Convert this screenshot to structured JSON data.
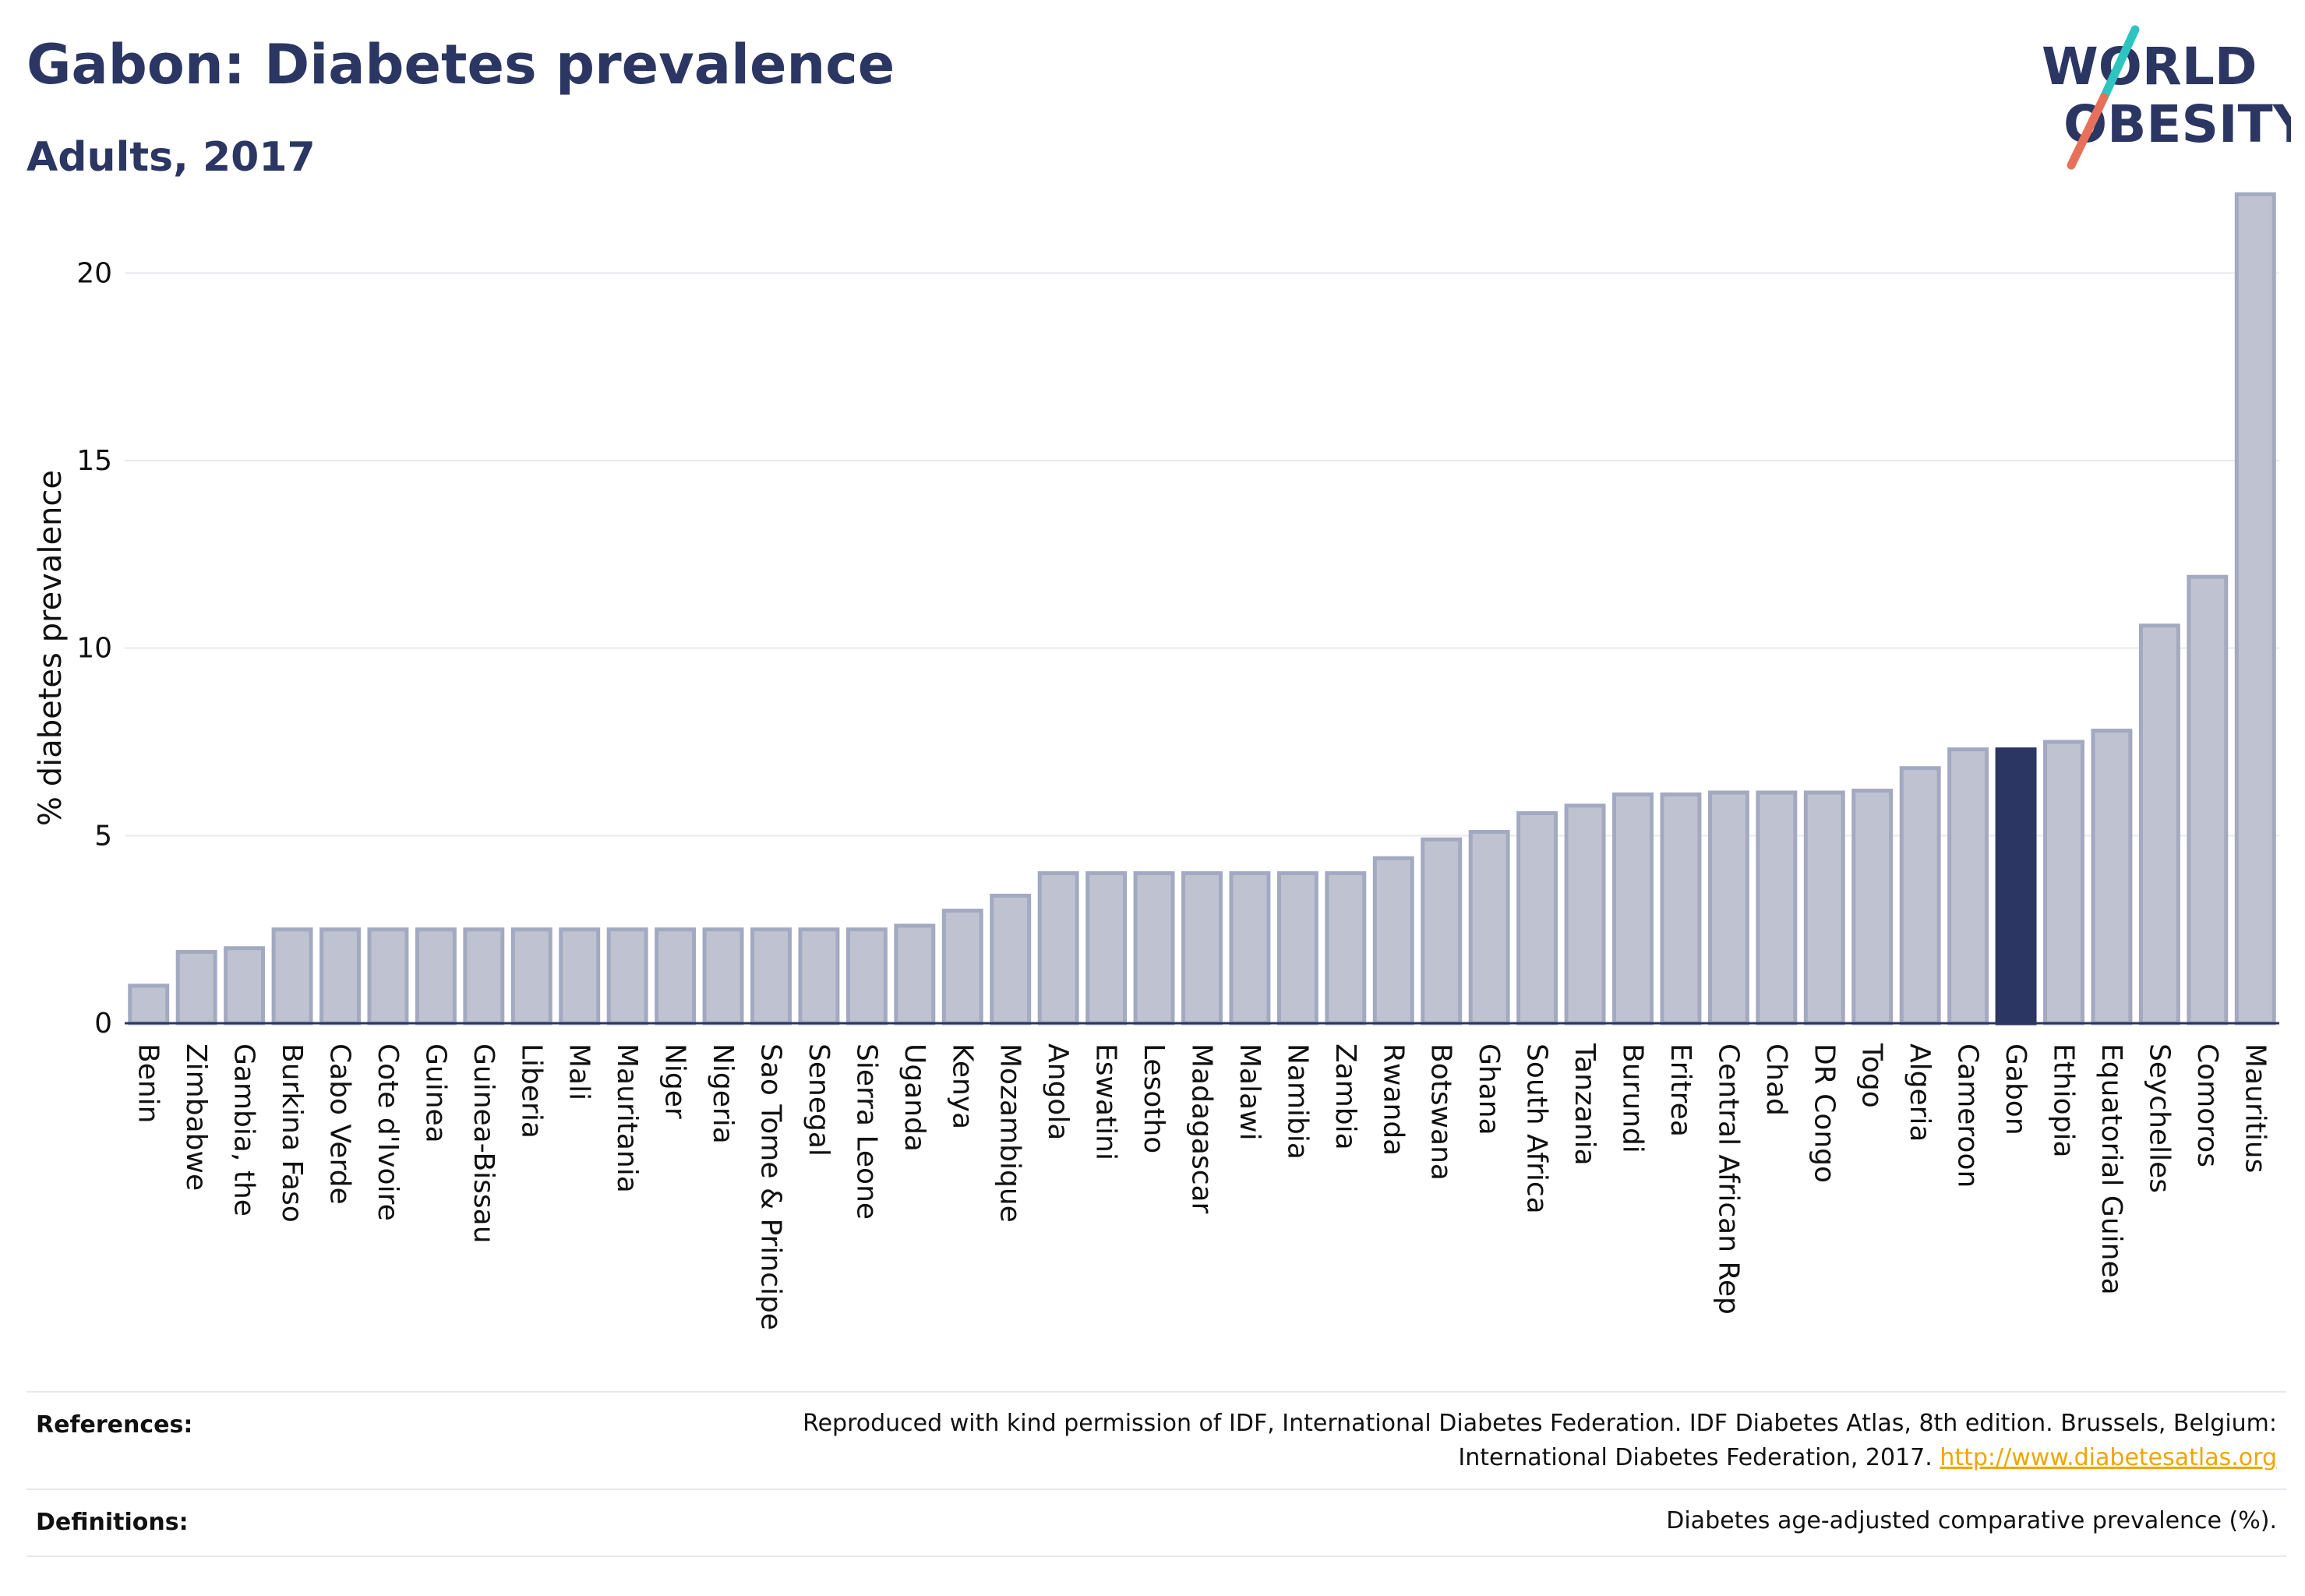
{
  "header": {
    "title": "Gabon: Diabetes prevalence",
    "subtitle": "Adults, 2017"
  },
  "logo": {
    "line1": "WORLD",
    "line2": "OBESITY",
    "slash_top_color": "#2ec4c0",
    "slash_bottom_color": "#e8705a"
  },
  "colors": {
    "bar_fill": "#bfc3d1",
    "bar_stroke": "#a3a9c0",
    "highlight": "#2b3663",
    "grid": "#e8e9ef",
    "axis": "#2b3663"
  },
  "chart_data": {
    "type": "bar",
    "title": "Gabon: Diabetes prevalence",
    "subtitle": "Adults, 2017",
    "ylabel": "% diabetes prevalence",
    "xlabel": "",
    "ylim": [
      0,
      22.5
    ],
    "yticks": [
      0,
      5,
      10,
      15,
      20
    ],
    "grid": true,
    "highlight": "Gabon",
    "categories": [
      "Benin",
      "Zimbabwe",
      "Gambia, the",
      "Burkina Faso",
      "Cabo Verde",
      "Cote d'Ivoire",
      "Guinea",
      "Guinea-Bissau",
      "Liberia",
      "Mali",
      "Mauritania",
      "Niger",
      "Nigeria",
      "Sao Tome & Principe",
      "Senegal",
      "Sierra Leone",
      "Uganda",
      "Kenya",
      "Mozambique",
      "Angola",
      "Eswatini",
      "Lesotho",
      "Madagascar",
      "Malawi",
      "Namibia",
      "Zambia",
      "Rwanda",
      "Botswana",
      "Ghana",
      "South Africa",
      "Tanzania",
      "Burundi",
      "Eritrea",
      "Central African Rep",
      "Chad",
      "DR Congo",
      "Togo",
      "Algeria",
      "Cameroon",
      "Gabon",
      "Ethiopia",
      "Equatorial Guinea",
      "Seychelles",
      "Comoros",
      "Mauritius"
    ],
    "values": [
      1.0,
      1.9,
      2.0,
      2.5,
      2.5,
      2.5,
      2.5,
      2.5,
      2.5,
      2.5,
      2.5,
      2.5,
      2.5,
      2.5,
      2.5,
      2.5,
      2.6,
      3.0,
      3.4,
      4.0,
      4.0,
      4.0,
      4.0,
      4.0,
      4.0,
      4.0,
      4.4,
      4.9,
      5.1,
      5.6,
      5.8,
      6.1,
      6.1,
      6.15,
      6.15,
      6.15,
      6.2,
      6.8,
      7.3,
      7.3,
      7.5,
      7.8,
      10.6,
      11.9,
      22.1
    ]
  },
  "footer": {
    "references_label": "References:",
    "references_line1": "Reproduced with kind permission of IDF, International Diabetes Federation. IDF Diabetes Atlas, 8th edition. Brussels, Belgium:",
    "references_line2": "International Diabetes Federation, 2017.",
    "references_link": "http://www.diabetesatlas.org",
    "definitions_label": "Definitions:",
    "definitions_text": "Diabetes age-adjusted comparative prevalence (%)."
  }
}
